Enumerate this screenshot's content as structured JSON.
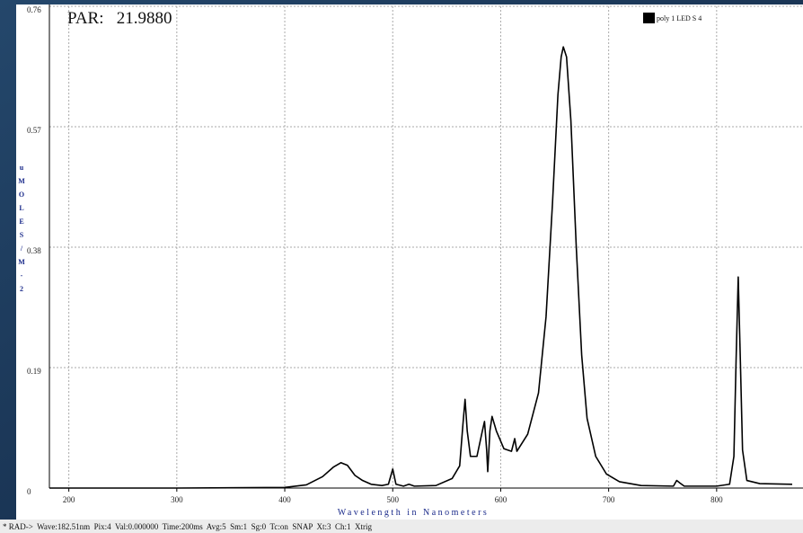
{
  "chart_data": {
    "type": "line",
    "title": "PAR:   21.9880",
    "xlabel": "Wavelength in Nanometers",
    "ylabel": "uMOLES/M-2",
    "x": [
      182,
      300,
      400,
      420,
      435,
      445,
      452,
      458,
      465,
      472,
      480,
      490,
      496,
      500,
      503,
      510,
      515,
      520,
      540,
      555,
      562,
      565,
      567,
      569,
      572,
      578,
      583,
      585,
      587,
      588,
      590,
      592,
      596,
      603,
      610,
      613,
      615,
      625,
      635,
      642,
      648,
      653,
      656,
      658,
      661,
      665,
      670,
      675,
      680,
      688,
      698,
      710,
      730,
      760,
      763,
      766,
      770,
      800,
      812,
      816,
      818,
      820,
      822,
      824,
      828,
      840,
      870
    ],
    "series": [
      {
        "name": "poly 1 LED S 4",
        "color": "#000000",
        "values": [
          0,
          0,
          0.001,
          0.005,
          0.018,
          0.033,
          0.04,
          0.036,
          0.02,
          0.012,
          0.006,
          0.004,
          0.006,
          0.03,
          0.006,
          0.003,
          0.006,
          0.003,
          0.004,
          0.015,
          0.035,
          0.1,
          0.14,
          0.09,
          0.05,
          0.05,
          0.09,
          0.105,
          0.06,
          0.026,
          0.09,
          0.113,
          0.09,
          0.062,
          0.058,
          0.078,
          0.058,
          0.085,
          0.15,
          0.27,
          0.45,
          0.62,
          0.68,
          0.696,
          0.68,
          0.58,
          0.38,
          0.21,
          0.11,
          0.05,
          0.022,
          0.01,
          0.004,
          0.003,
          0.012,
          0.008,
          0.003,
          0.003,
          0.006,
          0.05,
          0.2,
          0.333,
          0.2,
          0.06,
          0.012,
          0.007,
          0.006
        ]
      }
    ],
    "xlim": [
      182,
      880
    ],
    "xticks": [
      200,
      300,
      400,
      500,
      600,
      700,
      800
    ],
    "ylim": [
      0,
      0.76
    ],
    "yticks": [
      0,
      0.19,
      0.38,
      0.57,
      0.76
    ],
    "grid": true
  },
  "status_bar": "* RAD->  Wave:182.51nm  Pix:4  Val:0.000000  Time:200ms  Avg:5  Sm:1  Sg:0  Tc:on  SNAP  Xt:3  Ch:1  Xtrig"
}
